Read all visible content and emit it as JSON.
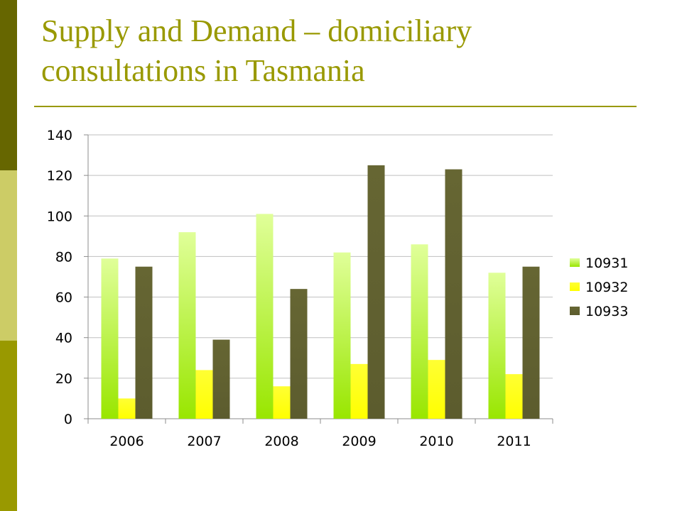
{
  "slide": {
    "title_line1": "Supply and Demand – domiciliary",
    "title_line2": "consultations in Tasmania"
  },
  "chart_data": {
    "type": "bar",
    "categories": [
      "2006",
      "2007",
      "2008",
      "2009",
      "2010",
      "2011"
    ],
    "series": [
      {
        "name": "10931",
        "values": [
          79,
          92,
          101,
          82,
          86,
          72
        ],
        "color": "#a6e600"
      },
      {
        "name": "10932",
        "values": [
          10,
          24,
          16,
          27,
          29,
          22
        ],
        "color": "#ffff00"
      },
      {
        "name": "10933",
        "values": [
          75,
          39,
          64,
          125,
          123,
          75
        ],
        "color": "#666633"
      }
    ],
    "ylim": [
      0,
      140
    ],
    "yticks": [
      0,
      20,
      40,
      60,
      80,
      100,
      120,
      140
    ],
    "grid": true,
    "legend": "right"
  }
}
